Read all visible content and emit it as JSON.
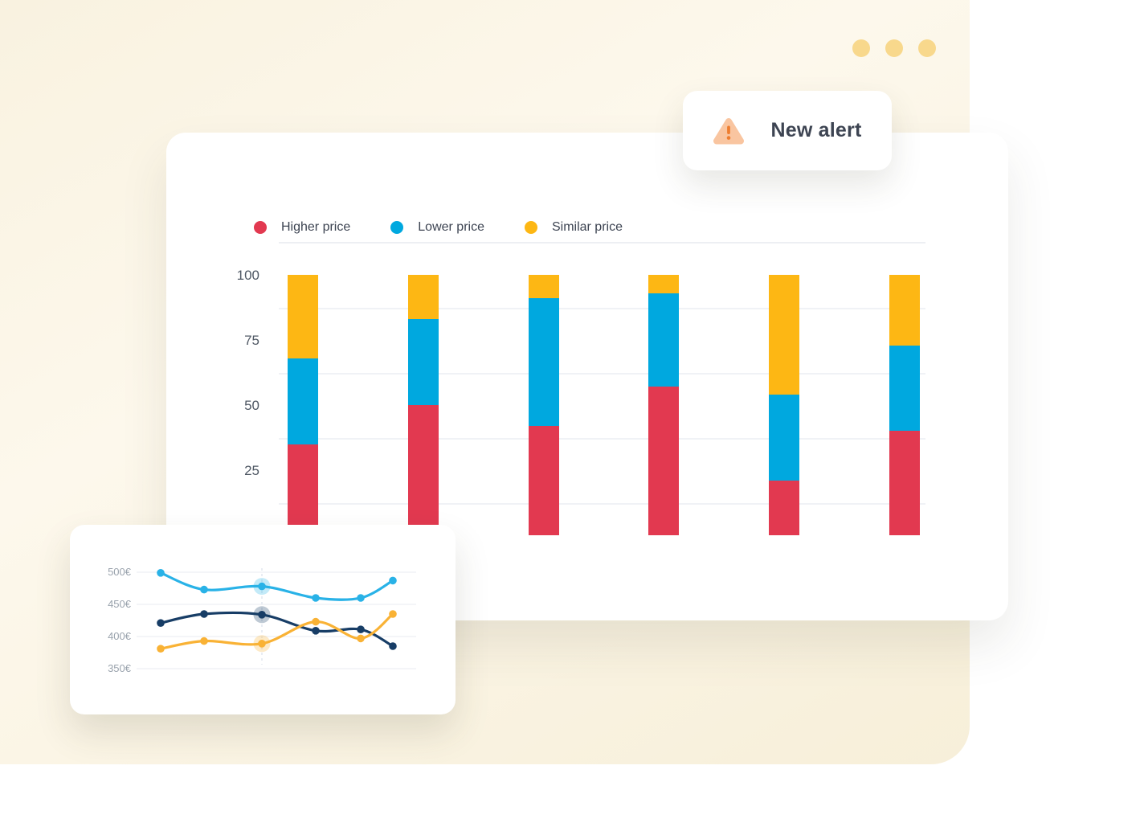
{
  "window_controls": {
    "dot_color": "#f8d88c",
    "dot_names": [
      "window-dot-1",
      "window-dot-2",
      "window-dot-3"
    ]
  },
  "alert": {
    "label": "New alert",
    "icon": "warning-triangle-icon",
    "icon_triangle_color": "#f9c5a0",
    "icon_mark_color": "#ee7d2f"
  },
  "chart_data": [
    {
      "type": "bar",
      "stacked": true,
      "title": "",
      "categories": [
        "",
        "",
        "",
        "",
        "",
        ""
      ],
      "series": [
        {
          "name": "Higher price",
          "color": "#e23950",
          "values": [
            35,
            50,
            42,
            57,
            21,
            40
          ]
        },
        {
          "name": "Lower price",
          "color": "#00a8df",
          "values": [
            33,
            33,
            49,
            36,
            33,
            33
          ]
        },
        {
          "name": "Similar price",
          "color": "#fdb714",
          "values": [
            32,
            17,
            9,
            7,
            46,
            27
          ]
        }
      ],
      "ylim": [
        0,
        100
      ],
      "yticks": [
        {
          "label": "100",
          "value": 100
        },
        {
          "label": "75",
          "value": 75
        },
        {
          "label": "50",
          "value": 50
        },
        {
          "label": "25",
          "value": 25
        }
      ],
      "gridline_values": [
        87.5,
        62.5,
        37.5,
        12.5
      ],
      "grid": "on",
      "legend_position": "top"
    },
    {
      "type": "line",
      "title": "",
      "x": [
        1,
        2,
        3,
        4,
        5,
        6
      ],
      "series": [
        {
          "name": "light-blue",
          "color": "#29b2e7",
          "values": [
            499,
            473,
            478,
            460,
            460,
            487
          ]
        },
        {
          "name": "navy",
          "color": "#173d66",
          "values": [
            421,
            435,
            434,
            409,
            411,
            385
          ]
        },
        {
          "name": "yellow",
          "color": "#f9b235",
          "values": [
            381,
            393,
            389,
            423,
            397,
            435
          ]
        }
      ],
      "ylim": [
        350,
        500
      ],
      "yticks": [
        {
          "label": "500€",
          "value": 500
        },
        {
          "label": "450€",
          "value": 450
        },
        {
          "label": "400€",
          "value": 400
        },
        {
          "label": "350€",
          "value": 350
        }
      ],
      "grid": "on",
      "legend_position": "none",
      "highlight_index": 2
    }
  ],
  "styles": {
    "gridline_color": "#f0f2f6",
    "mini_gridline_color": "#f0f2f5",
    "hover_guide_color": "#e9edf3"
  }
}
